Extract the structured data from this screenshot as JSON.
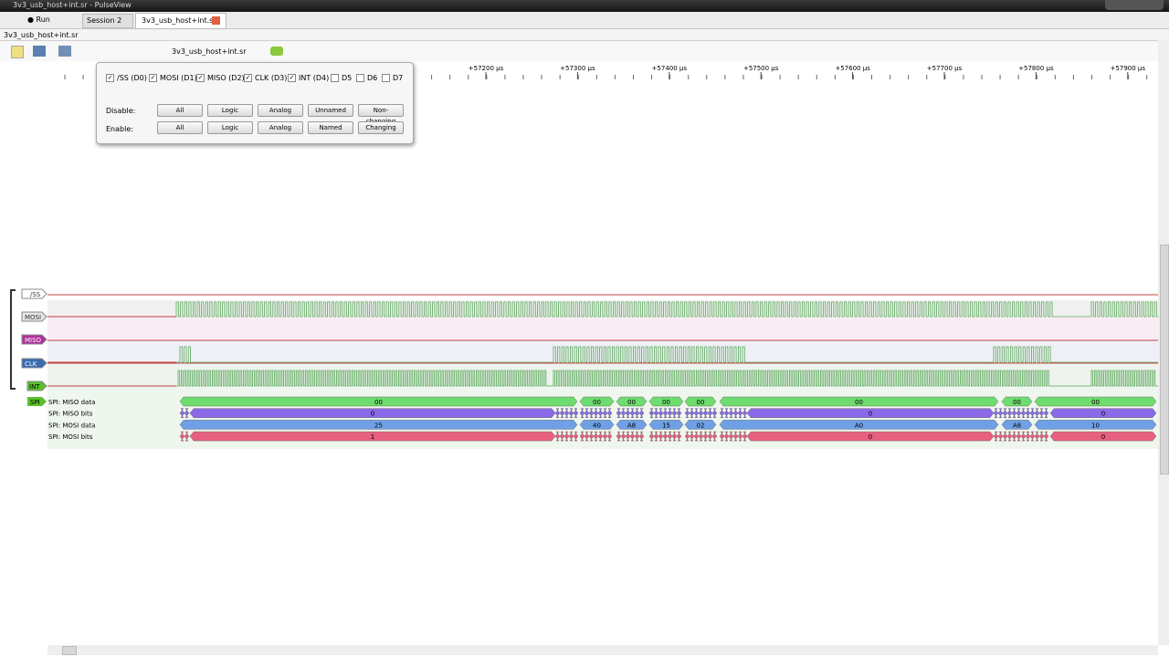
{
  "window": {
    "title": "3v3_usb_host+int.sr - PulseView"
  },
  "toolbar": {
    "run": "Run",
    "tabs": [
      "Session 2",
      "3v3_usb_host+int.sr"
    ]
  },
  "session": {
    "title": "3v3_usb_host+int.sr",
    "device": "3v3_usb_host+int.sr"
  },
  "ruler": {
    "ticks": [
      "+57200 µs",
      "+57300 µs",
      "+57400 µs",
      "+57500 µs",
      "+57600 µs",
      "+57700 µs",
      "+57800 µs",
      "+57900 µs"
    ]
  },
  "channel_popup": {
    "channels": [
      {
        "label": "/SS (D0)",
        "checked": true
      },
      {
        "label": "MOSI (D1)",
        "checked": true
      },
      {
        "label": "MISO (D2)",
        "checked": true
      },
      {
        "label": "CLK (D3)",
        "checked": true
      },
      {
        "label": "INT (D4)",
        "checked": true
      },
      {
        "label": "D5",
        "checked": false
      },
      {
        "label": "D6",
        "checked": false
      },
      {
        "label": "D7",
        "checked": false
      }
    ],
    "disable": {
      "label": "Disable:",
      "buttons": [
        "All",
        "Logic",
        "Analog",
        "Unnamed",
        "Non-changing"
      ]
    },
    "enable": {
      "label": "Enable:",
      "buttons": [
        "All",
        "Logic",
        "Analog",
        "Named",
        "Changing"
      ]
    }
  },
  "traces": {
    "channels": [
      "/SS",
      "MOSI",
      "MISO",
      "CLK",
      "INT"
    ],
    "decoder": "SPI",
    "rows": [
      {
        "name": "SPI: MISO data",
        "annotations": [
          "00",
          "00",
          "00",
          "00",
          "00",
          "00",
          "00",
          "00"
        ]
      },
      {
        "name": "SPI: MISO bits",
        "annotations": [
          "0",
          "0",
          "0"
        ]
      },
      {
        "name": "SPI: MOSI data",
        "annotations": [
          "25",
          "40",
          "A8",
          "15",
          "02",
          "A0",
          "A8",
          "10"
        ]
      },
      {
        "name": "SPI: MOSI bits",
        "annotations": [
          "1",
          "0",
          "0"
        ]
      }
    ]
  }
}
